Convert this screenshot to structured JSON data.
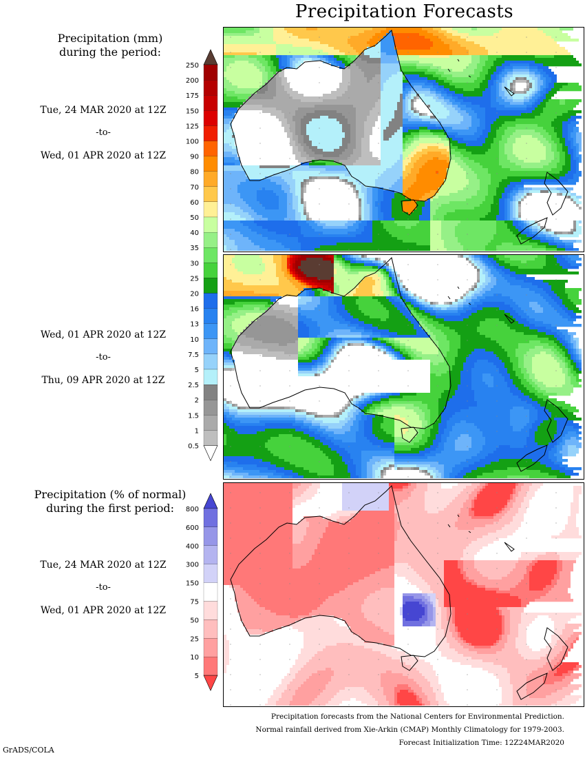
{
  "title": "Precipitation Forecasts",
  "sections": [
    {
      "heading": [
        "Precipitation (mm)",
        "during the period:"
      ],
      "period": {
        "from": "Tue, 24 MAR 2020 at 12Z",
        "to_word": "-to-",
        "to": "Wed, 01 APR 2020 at 12Z"
      }
    },
    {
      "period": {
        "from": "Wed, 01 APR 2020 at 12Z",
        "to_word": "-to-",
        "to": "Thu, 09 APR 2020 at 12Z"
      }
    },
    {
      "heading": [
        "Precipitation (% of normal)",
        "during the first period:"
      ],
      "period": {
        "from": "Tue, 24 MAR 2020 at 12Z",
        "to_word": "-to-",
        "to": "Wed, 01 APR 2020 at 12Z"
      }
    }
  ],
  "legend_mm": {
    "levels": [
      "250",
      "200",
      "175",
      "150",
      "125",
      "100",
      "90",
      "80",
      "70",
      "60",
      "50",
      "40",
      "35",
      "30",
      "25",
      "20",
      "16",
      "13",
      "10",
      "7.5",
      "5",
      "2.5",
      "2",
      "1.5",
      "1",
      "0.5"
    ],
    "colors": [
      "#a00000",
      "#b40000",
      "#c80000",
      "#dc0000",
      "#f01e00",
      "#ff6400",
      "#ff8c00",
      "#ffaa28",
      "#ffc84b",
      "#fff096",
      "#c8ffa0",
      "#96f087",
      "#6ee664",
      "#46d23c",
      "#14a014",
      "#1e6eeb",
      "#2882f0",
      "#3c96f5",
      "#6eb4fa",
      "#96d2fa",
      "#b4f0fa",
      "#828282",
      "#969696",
      "#aaaaaa",
      "#bebebe"
    ],
    "over_color": "#5a3c32",
    "under_color": "#ffffff"
  },
  "legend_pct": {
    "levels": [
      "800",
      "600",
      "400",
      "300",
      "150",
      "75",
      "50",
      "25",
      "10",
      "5"
    ],
    "colors": [
      "#7070e0",
      "#9696e8",
      "#b4b4f0",
      "#d2d2f8",
      "#ffffff",
      "#ffdcdc",
      "#ffbebe",
      "#ffa0a0",
      "#ff7878"
    ],
    "over_color": "#4646d2",
    "under_color": "#ff4646"
  },
  "footer": [
    "Precipitation forecasts from the National Centers for Environmental Prediction.",
    "Normal rainfall derived from Xie-Arkin (CMAP) Monthly Climatology for 1979-2003.",
    "Forecast Initialization Time: 12Z24MAR2020"
  ],
  "credit": "GrADS/COLA"
}
